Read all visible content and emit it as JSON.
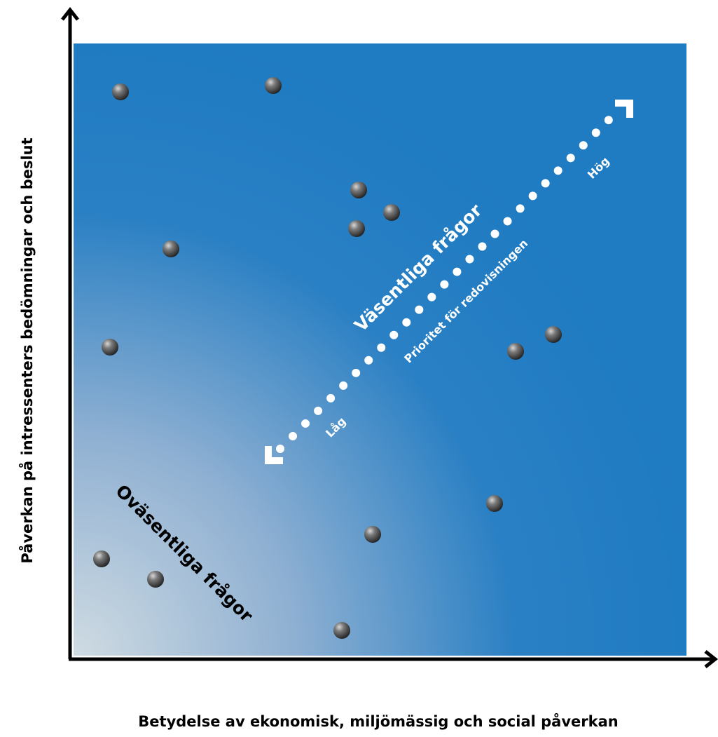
{
  "diagram": {
    "x_axis_label": "Betydelse av ekonomisk, miljömässig och social påverkan",
    "y_axis_label": "Påverkan på intressenters bedömningar och beslut",
    "significant_label": "Väsentliga frågor",
    "priority_label": "Prioritet för redovisningen",
    "low_label": "Låg",
    "high_label": "Hög",
    "insignificant_label": "Oväsentliga frågor"
  }
}
